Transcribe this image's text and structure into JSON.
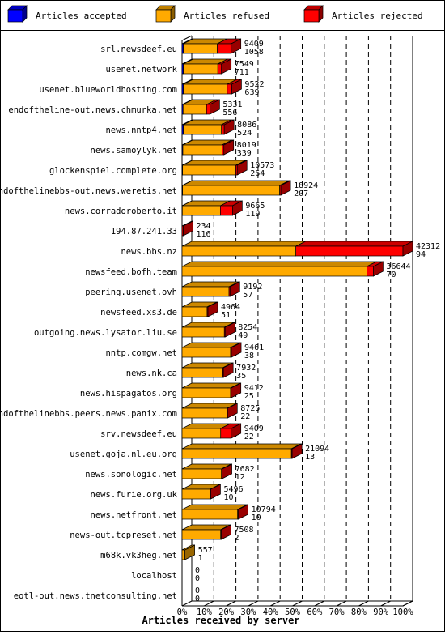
{
  "chart_data": {
    "type": "bar",
    "stacked": true,
    "orientation": "horizontal",
    "title": "Articles received by server",
    "legend_placement": "top",
    "x_ticks": [
      "0%",
      "10%",
      "20%",
      "30%",
      "40%",
      "50%",
      "60%",
      "70%",
      "80%",
      "90%",
      "100%"
    ],
    "xlim": [
      0,
      42312
    ],
    "grid": true,
    "series": [
      {
        "name": "Articles accepted",
        "color": "#0000ff"
      },
      {
        "name": "Articles refused",
        "color": "#ffaa00"
      },
      {
        "name": "Articles rejected",
        "color": "#ff0000"
      }
    ],
    "rows": [
      {
        "server": "srl.newsdeef.eu",
        "total": "9409",
        "rejected_count": "1058",
        "accepted": 250,
        "refused": 6500,
        "rejected": 2659
      },
      {
        "server": "usenet.network",
        "total": "7549",
        "rejected_count": "711",
        "accepted": 250,
        "refused": 6600,
        "rejected": 699
      },
      {
        "server": "usenet.blueworldhosting.com",
        "total": "9522",
        "rejected_count": "639",
        "accepted": 250,
        "refused": 8400,
        "rejected": 872
      },
      {
        "server": "endoftheline-out.news.chmurka.net",
        "total": "5331",
        "rejected_count": "556",
        "accepted": 200,
        "refused": 4500,
        "rejected": 631
      },
      {
        "server": "news.nntp4.net",
        "total": "8086",
        "rejected_count": "524",
        "accepted": 250,
        "refused": 7300,
        "rejected": 536
      },
      {
        "server": "news.samoylyk.net",
        "total": "8019",
        "rejected_count": "339",
        "accepted": 150,
        "refused": 7500,
        "rejected": 369
      },
      {
        "server": "glockenspiel.complete.org",
        "total": "10573",
        "rejected_count": "264",
        "accepted": 100,
        "refused": 10200,
        "rejected": 273
      },
      {
        "server": "endofthelinebbs-out.news.weretis.net",
        "total": "18924",
        "rejected_count": "207",
        "accepted": 100,
        "refused": 18600,
        "rejected": 224
      },
      {
        "server": "news.corradoroberto.it",
        "total": "9665",
        "rejected_count": "119",
        "accepted": 50,
        "refused": 7300,
        "rejected": 2315
      },
      {
        "server": "194.87.241.33",
        "total": "234",
        "rejected_count": "116",
        "accepted": 0,
        "refused": 0,
        "rejected": 234
      },
      {
        "server": "news.bbs.nz",
        "total": "42312",
        "rejected_count": "94",
        "accepted": 0,
        "refused": 21800,
        "rejected": 20512
      },
      {
        "server": "newsfeed.bofh.team",
        "total": "36644",
        "rejected_count": "70",
        "accepted": 0,
        "refused": 35400,
        "rejected": 1244
      },
      {
        "server": "peering.usenet.ovh",
        "total": "9192",
        "rejected_count": "57",
        "accepted": 0,
        "refused": 9000,
        "rejected": 192
      },
      {
        "server": "newsfeed.xs3.de",
        "total": "4964",
        "rejected_count": "51",
        "accepted": 0,
        "refused": 4800,
        "rejected": 164
      },
      {
        "server": "outgoing.news.lysator.liu.se",
        "total": "8254",
        "rejected_count": "49",
        "accepted": 0,
        "refused": 8100,
        "rejected": 154
      },
      {
        "server": "nntp.comgw.net",
        "total": "9461",
        "rejected_count": "38",
        "accepted": 0,
        "refused": 9300,
        "rejected": 161
      },
      {
        "server": "news.nk.ca",
        "total": "7932",
        "rejected_count": "35",
        "accepted": 0,
        "refused": 7800,
        "rejected": 132
      },
      {
        "server": "news.hispagatos.org",
        "total": "9412",
        "rejected_count": "25",
        "accepted": 0,
        "refused": 9300,
        "rejected": 112
      },
      {
        "server": "endofthelinebbs.peers.news.panix.com",
        "total": "8725",
        "rejected_count": "22",
        "accepted": 0,
        "refused": 8600,
        "rejected": 125
      },
      {
        "server": "srv.newsdeef.eu",
        "total": "9409",
        "rejected_count": "22",
        "accepted": 0,
        "refused": 7400,
        "rejected": 2009
      },
      {
        "server": "usenet.goja.nl.eu.org",
        "total": "21094",
        "rejected_count": "13",
        "accepted": 0,
        "refused": 20950,
        "rejected": 144
      },
      {
        "server": "news.sonologic.net",
        "total": "7682",
        "rejected_count": "12",
        "accepted": 0,
        "refused": 7550,
        "rejected": 132
      },
      {
        "server": "news.furie.org.uk",
        "total": "5496",
        "rejected_count": "10",
        "accepted": 0,
        "refused": 5400,
        "rejected": 96
      },
      {
        "server": "news.netfront.net",
        "total": "10794",
        "rejected_count": "10",
        "accepted": 0,
        "refused": 10650,
        "rejected": 144
      },
      {
        "server": "news-out.tcpreset.net",
        "total": "7508",
        "rejected_count": "2",
        "accepted": 0,
        "refused": 7400,
        "rejected": 108
      },
      {
        "server": "m68k.vk3heg.net",
        "total": "557",
        "rejected_count": "1",
        "accepted": 0,
        "refused": 557,
        "rejected": 0
      },
      {
        "server": "localhost",
        "total": "0",
        "rejected_count": "0",
        "accepted": 0,
        "refused": 0,
        "rejected": 0
      },
      {
        "server": "eotl-out.news.tnetconsulting.net",
        "total": "0",
        "rejected_count": "0",
        "accepted": 0,
        "refused": 0,
        "rejected": 0
      }
    ]
  }
}
